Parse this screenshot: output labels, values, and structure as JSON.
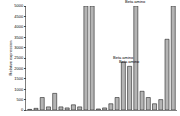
{
  "chart_data": {
    "type": "bar",
    "y_label": "Relative expression",
    "categories": [
      null,
      null,
      null,
      null,
      null,
      null,
      null,
      null,
      null,
      null,
      null,
      null,
      null,
      null,
      null,
      null,
      null,
      null,
      null,
      null,
      null,
      null,
      null,
      null
    ],
    "values": [
      30,
      80,
      600,
      150,
      800,
      150,
      100,
      250,
      150,
      5000,
      5000,
      50,
      100,
      300,
      600,
      2300,
      2100,
      5000,
      900,
      600,
      300,
      500,
      3400,
      5000
    ],
    "color": "#b4b4b4",
    "ylim": [
      0,
      5000
    ],
    "yticks": [
      0,
      500,
      1000,
      1500,
      2000,
      2500,
      3000,
      3500,
      4000,
      4500,
      5000
    ],
    "grid": false,
    "annotations": [
      {
        "text": "Beta amino",
        "x": 15,
        "y": 2300
      },
      {
        "text": "Beta amino",
        "x": 16,
        "y": 2100
      },
      {
        "text": "Beta amino",
        "x": 17,
        "y": 5000
      }
    ]
  }
}
